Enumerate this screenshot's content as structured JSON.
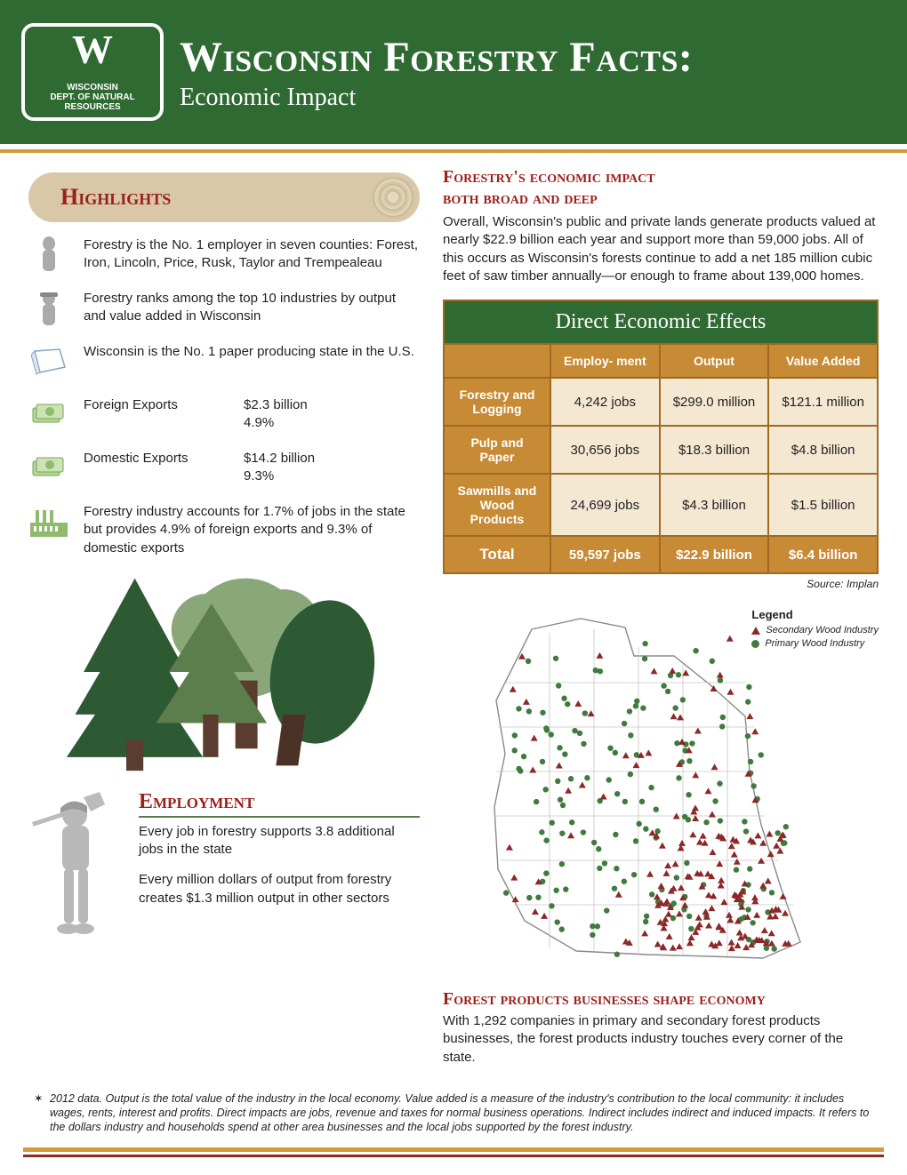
{
  "header": {
    "logo_small1": "WISCONSIN",
    "logo_small2": "DEPT. OF NATURAL RESOURCES",
    "title": "Wisconsin Forestry Facts:",
    "subtitle": "Economic Impact"
  },
  "highlights": {
    "title": "Highlights",
    "items": [
      {
        "text": "Forestry is the No. 1 employer in seven counties: Forest, Iron, Lincoln, Price, Rusk, Taylor and Trempealeau"
      },
      {
        "text": "Forestry ranks among the top 10 industries by output and value added in Wisconsin"
      },
      {
        "text": "Wisconsin is the No. 1 paper producing state in the U.S."
      }
    ],
    "exports": [
      {
        "label": "Foreign Exports",
        "val": "$2.3 billion",
        "pct": "4.9%"
      },
      {
        "label": "Domestic Exports",
        "val": "$14.2 billion",
        "pct": "9.3%"
      }
    ],
    "final": "Forestry industry accounts for 1.7% of jobs in the state but provides 4.9% of foreign exports and 9.3% of domestic exports"
  },
  "employment": {
    "title": "Employment",
    "p1": "Every job in forestry supports 3.8 additional jobs in the state",
    "p2": "Every million dollars of output from forestry creates $1.3 million output in other sectors"
  },
  "impact": {
    "head1": "Forestry's economic impact",
    "head2": "both broad and deep",
    "body": "Overall, Wisconsin's public and private lands generate products valued at nearly $22.9 billion each year and support more than 59,000 jobs. All of this occurs as Wisconsin's forests continue to add a net 185 million cubic feet of saw timber annually—or enough to frame about 139,000 homes."
  },
  "table": {
    "title": "Direct Economic Effects",
    "columns": [
      "Employ-\nment",
      "Output",
      "Value Added"
    ],
    "rows": [
      {
        "label": "Forestry and Logging",
        "cells": [
          "4,242 jobs",
          "$299.0 million",
          "$121.1 million"
        ]
      },
      {
        "label": "Pulp and Paper",
        "cells": [
          "30,656 jobs",
          "$18.3 billion",
          "$4.8 billion"
        ]
      },
      {
        "label": "Sawmills and Wood Products",
        "cells": [
          "24,699 jobs",
          "$4.3 billion",
          "$1.5 billion"
        ]
      }
    ],
    "total": {
      "label": "Total",
      "cells": [
        "59,597 jobs",
        "$22.9 billion",
        "$6.4 billion"
      ]
    },
    "source": "Source: Implan"
  },
  "legend": {
    "title": "Legend",
    "secondary": "Secondary Wood Industry",
    "primary": "Primary Wood Industry"
  },
  "businesses": {
    "head": "Forest products businesses shape economy",
    "body": "With 1,292 companies in primary and secondary forest products businesses, the forest products industry touches every corner of the state."
  },
  "footnote": "2012 data. Output is the total value of the industry in the local economy. Value added is a measure of the industry's contribution to the local community: it includes wages, rents, interest and profits. Direct impacts are jobs, revenue and taxes for normal business operations. Indirect includes indirect and induced impacts. It refers to the dollars industry and households spend at other area businesses and the local jobs supported by the forest industry.",
  "styling": {
    "header_bg": "#2e6a32",
    "accent_orange": "#d69a3c",
    "accent_maroon": "#9c1f1a",
    "table_header_bg": "#c78b36",
    "table_cell_bg": "#f4e8d3",
    "table_border": "#9f6a1f",
    "body_font": "Arial",
    "heading_font": "Georgia",
    "body_fontsize": 15
  },
  "map": {
    "secondary_color": "#8c2828",
    "primary_color": "#3e7b3d",
    "outline_color": "#7a7a7a",
    "n_secondary": 180,
    "n_primary": 160
  },
  "tree_scene": {
    "colors": {
      "dark_green": "#2e5a33",
      "mid_green": "#5c7d4c",
      "light_green": "#8aa77a",
      "trunk": "#5a3d2e"
    }
  }
}
